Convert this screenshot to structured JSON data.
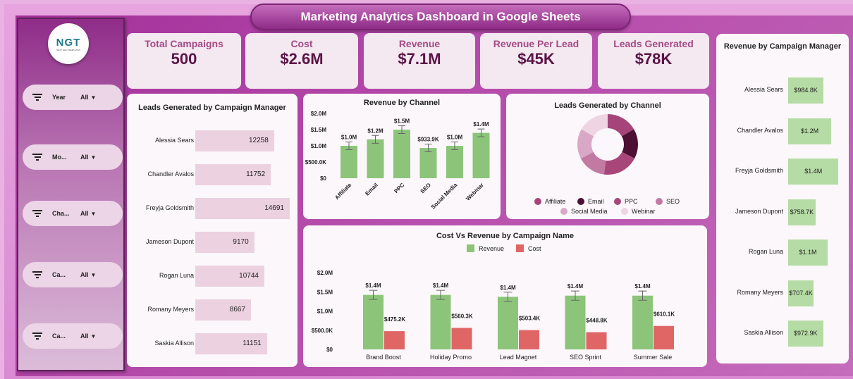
{
  "title": "Marketing Analytics Dashboard in Google Sheets",
  "logo": {
    "text": "NGT",
    "subtitle": "NEXT GEN TEMPLATES"
  },
  "filters": [
    {
      "label": "Year",
      "value": "All"
    },
    {
      "label": "Mo...",
      "value": "All"
    },
    {
      "label": "Cha...",
      "value": "All"
    },
    {
      "label": "Ca...",
      "value": "All"
    },
    {
      "label": "Ca...",
      "value": "All"
    }
  ],
  "kpis": [
    {
      "label": "Total Campaigns",
      "value": "500"
    },
    {
      "label": "Cost",
      "value": "$2.6M"
    },
    {
      "label": "Revenue",
      "value": "$7.1M"
    },
    {
      "label": "Revenue Per Lead",
      "value": "$45K"
    },
    {
      "label": "Leads Generated",
      "value": "$78K"
    }
  ],
  "colors": {
    "revenue": "#8cc57a",
    "cost": "#e06666",
    "leads_bar": "#ecd1e0",
    "rev_manager_bar": "#b6dca5"
  },
  "chart_data": [
    {
      "type": "bar",
      "orientation": "horizontal",
      "title": "Leads Generated by Campaign Manager",
      "categories": [
        "Alessia Sears",
        "Chandler Avalos",
        "Freyja Goldsmith",
        "Jameson Dupont",
        "Rogan Luna",
        "Romany Meyers",
        "Saskia Allison"
      ],
      "values": [
        12258,
        11752,
        14691,
        9170,
        10744,
        8667,
        11151
      ],
      "labels": [
        "12258",
        "11752",
        "14691",
        "9170",
        "10744",
        "8667",
        "11151"
      ]
    },
    {
      "type": "bar",
      "title": "Revenue by Channel",
      "categories": [
        "Affiliate",
        "Email",
        "PPC",
        "SEO",
        "Social Media",
        "Webinar"
      ],
      "values": [
        1000000,
        1200000,
        1500000,
        933900,
        1000000,
        1400000
      ],
      "labels": [
        "$1.0M",
        "$1.2M",
        "$1.5M",
        "$933.9K",
        "$1.0M",
        "$1.4M"
      ],
      "yticks": [
        "$0",
        "$500.0K",
        "$1.0M",
        "$1.5M",
        "$2.0M"
      ],
      "ylim": [
        0,
        2000000
      ],
      "error_bars": true
    },
    {
      "type": "pie",
      "donut": true,
      "title": "Leads Generated by Channel",
      "categories": [
        "Affiliate",
        "Email",
        "PPC",
        "SEO",
        "Social Media",
        "Webinar"
      ],
      "values": [
        13000,
        12500,
        15000,
        12000,
        12500,
        13000
      ],
      "colors": [
        "#a6447a",
        "#4d0f33",
        "#a8467a",
        "#c27aa3",
        "#d9a8c7",
        "#efd4e4"
      ],
      "legend": "bottom"
    },
    {
      "type": "bar",
      "title": "Cost Vs Revenue by Campaign Name",
      "categories": [
        "Brand Boost",
        "Holiday Promo",
        "Lead Magnet",
        "SEO Sprint",
        "Summer Sale"
      ],
      "series": [
        {
          "name": "Revenue",
          "values": [
            1420000,
            1420000,
            1370000,
            1400000,
            1400000
          ],
          "labels": [
            "$1.4M",
            "$1.4M",
            "$1.4M",
            "$1.4M",
            "$1.4M"
          ]
        },
        {
          "name": "Cost",
          "values": [
            475200,
            560300,
            503400,
            448800,
            610100
          ],
          "labels": [
            "$475.2K",
            "$560.3K",
            "$503.4K",
            "$448.8K",
            "$610.1K"
          ]
        }
      ],
      "yticks": [
        "$0",
        "$500.0K",
        "$1.0M",
        "$1.5M",
        "$2.0M"
      ],
      "ylim": [
        0,
        2000000
      ],
      "legend": "top"
    },
    {
      "type": "bar",
      "orientation": "horizontal",
      "title": "Revenue by Campaign Manager",
      "categories": [
        "Alessia Sears",
        "Chandler Avalos",
        "Freyja Goldsmith",
        "Jameson Dupont",
        "Rogan Luna",
        "Romany Meyers",
        "Saskia Allison"
      ],
      "values": [
        984800,
        1200000,
        1400000,
        758700,
        1100000,
        707400,
        972900
      ],
      "labels": [
        "$984.8K",
        "$1.2M",
        "$1.4M",
        "$758.7K",
        "$1.1M",
        "$707.4K",
        "$972.9K"
      ]
    }
  ]
}
